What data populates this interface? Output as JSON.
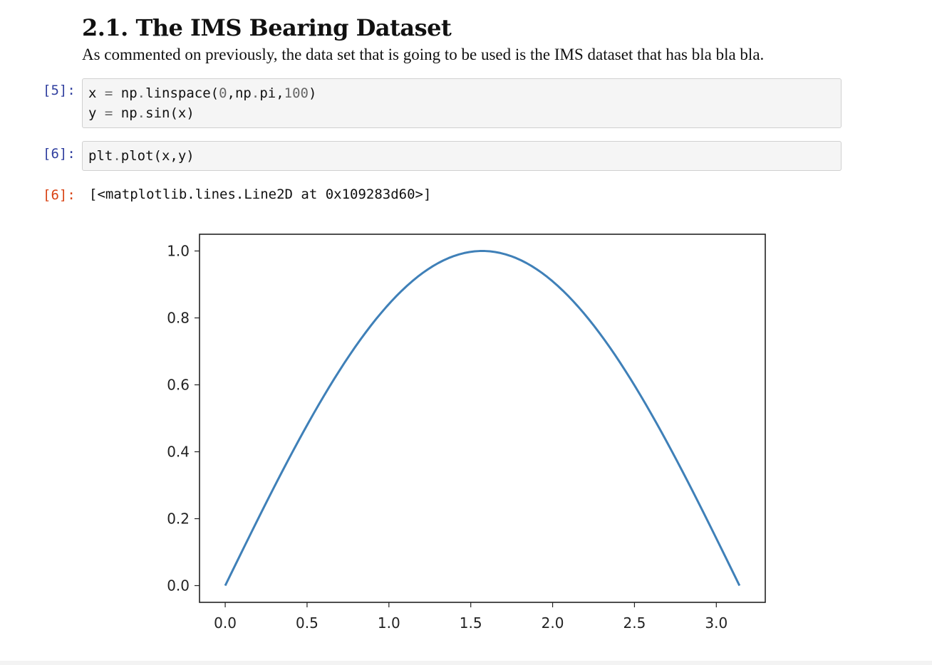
{
  "section": {
    "heading": "2.1. The IMS Bearing Dataset",
    "paragraph": "As commented on previously, the data set that is going to be used is the IMS dataset that has bla bla bla."
  },
  "cells": {
    "cell1": {
      "prompt": "[5]:",
      "line1": {
        "a": "x ",
        "op": "=",
        "b": " np",
        "dot": ".",
        "c": "linspace(",
        "n1": "0",
        "d": ",np",
        "dot2": ".",
        "e": "pi,",
        "n2": "100",
        "f": ")"
      },
      "line2": {
        "a": "y ",
        "op": "=",
        "b": " np",
        "dot": ".",
        "c": "sin(x)"
      }
    },
    "cell2": {
      "prompt": "[6]:",
      "line1": {
        "a": "plt",
        "dot": ".",
        "b": "plot(x,y)"
      }
    },
    "output": {
      "prompt": "[6]:",
      "text": "[<matplotlib.lines.Line2D at 0x109283d60>]"
    }
  },
  "chart_data": {
    "type": "line",
    "title": "",
    "xlabel": "",
    "ylabel": "",
    "function": "y = sin(x)",
    "x_range": [
      0,
      3.14159
    ],
    "num_points": 100,
    "xlim": [
      -0.157,
      3.299
    ],
    "ylim": [
      -0.05,
      1.05
    ],
    "xticks": [
      0.0,
      0.5,
      1.0,
      1.5,
      2.0,
      2.5,
      3.0
    ],
    "xtick_labels": [
      "0.0",
      "0.5",
      "1.0",
      "1.5",
      "2.0",
      "2.5",
      "3.0"
    ],
    "yticks": [
      0.0,
      0.2,
      0.4,
      0.6,
      0.8,
      1.0
    ],
    "ytick_labels": [
      "0.0",
      "0.2",
      "0.4",
      "0.6",
      "0.8",
      "1.0"
    ],
    "grid": false,
    "series": [
      {
        "color": "#3f80b8"
      }
    ]
  }
}
